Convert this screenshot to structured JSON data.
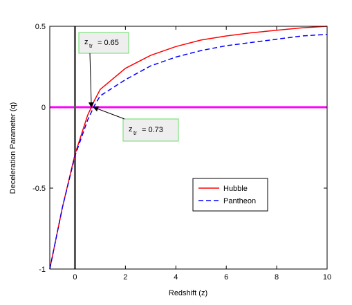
{
  "chart_data": {
    "type": "line",
    "x_label": "Redshift (z)",
    "y_label": "Deceleration Parameter (q)",
    "x": [
      -1,
      -0.5,
      0,
      0.5,
      0.65,
      0.73,
      1,
      2,
      3,
      4,
      5,
      6,
      7,
      8,
      9,
      10
    ],
    "series": [
      {
        "name": "Hubble",
        "color": "#ff0000",
        "dash": "solid",
        "values": [
          -1,
          -0.62,
          -0.29,
          -0.05,
          0,
          0.03,
          0.11,
          0.24,
          0.32,
          0.375,
          0.415,
          0.44,
          0.46,
          0.475,
          0.49,
          0.5
        ]
      },
      {
        "name": "Pantheon",
        "color": "#0000ff",
        "dash": "dashed",
        "values": [
          -1,
          -0.62,
          -0.3,
          -0.08,
          -0.03,
          0,
          0.07,
          0.17,
          0.255,
          0.31,
          0.35,
          0.38,
          0.4,
          0.42,
          0.44,
          0.45
        ]
      }
    ],
    "hline": {
      "y": 0,
      "color": "#ff00ff"
    },
    "vline": {
      "x": 0,
      "color": "#555555"
    },
    "xlim": [
      -1,
      10
    ],
    "ylim": [
      -1,
      0.5
    ],
    "xticks": [
      0,
      2,
      4,
      6,
      8,
      10
    ],
    "yticks": [
      -1,
      -0.5,
      0,
      0.5
    ],
    "legend": "center right",
    "annotations": [
      {
        "symbol": "z",
        "subscript": "tr",
        "text": "= 0.65",
        "x": 0.65,
        "y": 0
      },
      {
        "symbol": "z",
        "subscript": "tr",
        "text": "= 0.73",
        "x": 0.73,
        "y": 0
      }
    ]
  }
}
